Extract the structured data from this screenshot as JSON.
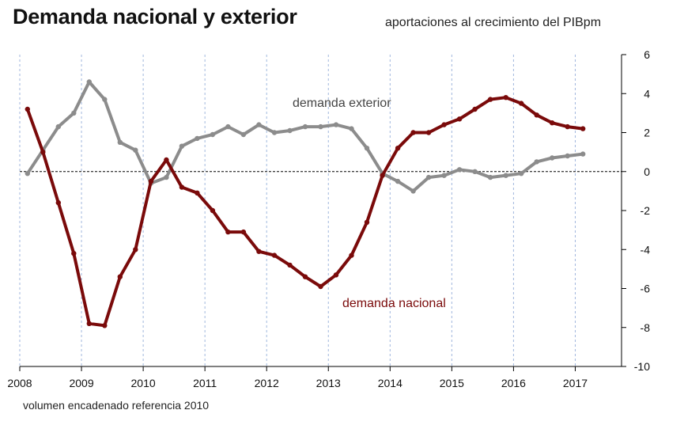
{
  "title": "Demanda nacional y exterior",
  "subtitle": "aportaciones al crecimiento del PIBpm",
  "footnote": "volumen encadenado referencia 2010",
  "chart_data": {
    "type": "line",
    "title": "Demanda nacional y exterior",
    "subtitle": "aportaciones al crecimiento del PIBpm",
    "x_tick_labels": [
      "2008",
      "2009",
      "2010",
      "2011",
      "2012",
      "2013",
      "2014",
      "2015",
      "2016",
      "2017"
    ],
    "xlim": [
      2008,
      2017.75
    ],
    "ylim": [
      -10,
      6
    ],
    "y_ticks": [
      6,
      4,
      2,
      0,
      -2,
      -4,
      -6,
      -8,
      -10
    ],
    "y_axis_side": "right",
    "zero_line": "dashed",
    "grid": "vertical dashed lines at each year",
    "x": [
      2008.125,
      2008.375,
      2008.625,
      2008.875,
      2009.125,
      2009.375,
      2009.625,
      2009.875,
      2010.125,
      2010.375,
      2010.625,
      2010.875,
      2011.125,
      2011.375,
      2011.625,
      2011.875,
      2012.125,
      2012.375,
      2012.625,
      2012.875,
      2013.125,
      2013.375,
      2013.625,
      2013.875,
      2014.125,
      2014.375,
      2014.625,
      2014.875,
      2015.125,
      2015.375,
      2015.625,
      2015.875,
      2016.125,
      2016.375,
      2016.625,
      2016.875,
      2017.125
    ],
    "series": [
      {
        "name": "demanda exterior",
        "color": "#8c8c8c",
        "values": [
          -0.1,
          1.1,
          2.3,
          3.0,
          4.6,
          3.7,
          1.5,
          1.1,
          -0.6,
          -0.3,
          1.3,
          1.7,
          1.9,
          2.3,
          1.9,
          2.4,
          2.0,
          2.1,
          2.3,
          2.3,
          2.4,
          2.2,
          1.2,
          -0.1,
          -0.5,
          -1.0,
          -0.3,
          -0.2,
          0.1,
          0.0,
          -0.3,
          -0.2,
          -0.1,
          0.5,
          0.7,
          0.8,
          0.9
        ]
      },
      {
        "name": "demanda nacional",
        "color": "#7a0a0a",
        "values": [
          3.2,
          1.0,
          -1.6,
          -4.2,
          -7.8,
          -7.9,
          -5.4,
          -4.0,
          -0.5,
          0.6,
          -0.8,
          -1.1,
          -2.0,
          -3.1,
          -3.1,
          -4.1,
          -4.3,
          -4.8,
          -5.4,
          -5.9,
          -5.3,
          -4.3,
          -2.6,
          -0.2,
          1.2,
          2.0,
          2.0,
          2.4,
          2.7,
          3.2,
          3.7,
          3.8,
          3.5,
          2.9,
          2.5,
          2.3,
          2.2
        ]
      }
    ]
  }
}
